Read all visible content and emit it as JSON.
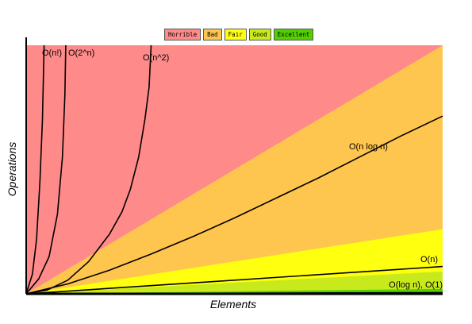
{
  "chart_data": {
    "type": "area",
    "xlabel": "Elements",
    "ylabel": "Operations",
    "xlim": [
      0,
      100
    ],
    "ylim": [
      0,
      100
    ],
    "legend": {
      "placement": "top-center",
      "entries": [
        {
          "label": "Horrible",
          "color": "#ff8a8a"
        },
        {
          "label": "Bad",
          "color": "#ffc64f"
        },
        {
          "label": "Fair",
          "color": "#ffff10"
        },
        {
          "label": "Good",
          "color": "#c8ea1c"
        },
        {
          "label": "Excellent",
          "color": "#53d000"
        }
      ]
    },
    "regions": [
      {
        "name": "Horrible",
        "color": "#ff8a8a",
        "upper": [
          [
            0,
            100
          ],
          [
            100,
            100
          ]
        ]
      },
      {
        "name": "Bad",
        "color": "#ffc64f",
        "upper": [
          [
            0,
            0
          ],
          [
            100,
            100
          ]
        ]
      },
      {
        "name": "Fair",
        "color": "#ffff10",
        "upper": [
          [
            0,
            0
          ],
          [
            100,
            26
          ]
        ]
      },
      {
        "name": "Good",
        "color": "#c8ea1c",
        "upper": [
          [
            0,
            0
          ],
          [
            100,
            9
          ]
        ]
      },
      {
        "name": "Excellent",
        "color": "#53d000",
        "upper": [
          [
            0,
            0
          ],
          [
            100,
            2
          ]
        ]
      }
    ],
    "series": [
      {
        "name": "O(n!)",
        "points": [
          [
            0,
            0
          ],
          [
            1.5,
            8
          ],
          [
            2.5,
            22
          ],
          [
            3.3,
            45
          ],
          [
            3.9,
            70
          ],
          [
            4.3,
            100
          ]
        ]
      },
      {
        "name": "O(2^n)",
        "points": [
          [
            0,
            0
          ],
          [
            3,
            6
          ],
          [
            5.5,
            15
          ],
          [
            7.5,
            32
          ],
          [
            8.7,
            55
          ],
          [
            9.3,
            80
          ],
          [
            9.5,
            100
          ]
        ]
      },
      {
        "name": "O(n^2)",
        "points": [
          [
            0,
            0
          ],
          [
            5,
            1.5
          ],
          [
            10,
            5.5
          ],
          [
            15,
            13
          ],
          [
            20,
            24
          ],
          [
            23,
            33
          ],
          [
            25,
            42
          ],
          [
            27,
            55
          ],
          [
            28.5,
            70
          ],
          [
            29.5,
            83
          ],
          [
            30,
            100
          ]
        ]
      },
      {
        "name": "O(n log n)",
        "points": [
          [
            0,
            0
          ],
          [
            10,
            4
          ],
          [
            20,
            9.5
          ],
          [
            30,
            16
          ],
          [
            40,
            23
          ],
          [
            50,
            30.5
          ],
          [
            60,
            38.5
          ],
          [
            70,
            46.5
          ],
          [
            80,
            55
          ],
          [
            90,
            63.5
          ],
          [
            100,
            71.5
          ]
        ]
      },
      {
        "name": "O(n)",
        "points": [
          [
            0,
            0
          ],
          [
            100,
            11
          ]
        ]
      },
      {
        "name": "O(log n), O(1)",
        "points": [
          [
            0,
            0
          ],
          [
            100,
            0.5
          ]
        ]
      }
    ]
  }
}
